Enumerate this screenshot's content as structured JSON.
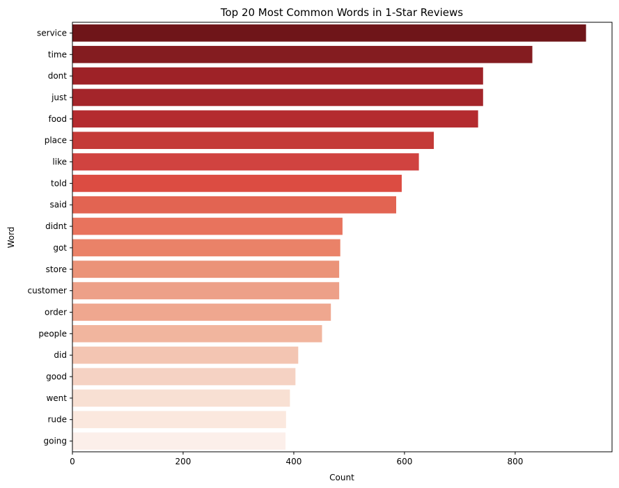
{
  "chart_data": {
    "type": "bar",
    "orientation": "horizontal",
    "title": "Top 20 Most Common Words in 1-Star Reviews",
    "xlabel": "Count",
    "ylabel": "Word",
    "xlim": [
      0,
      975
    ],
    "xticks": [
      0,
      200,
      400,
      600,
      800
    ],
    "grid": false,
    "categories": [
      "service",
      "time",
      "dont",
      "just",
      "food",
      "place",
      "like",
      "told",
      "said",
      "didnt",
      "got",
      "store",
      "customer",
      "order",
      "people",
      "did",
      "good",
      "went",
      "rude",
      "going"
    ],
    "values": [
      928,
      831,
      742,
      742,
      733,
      653,
      626,
      595,
      585,
      488,
      484,
      482,
      482,
      467,
      451,
      408,
      403,
      393,
      386,
      385
    ],
    "colors": [
      "#6f1519",
      "#841c20",
      "#9e2227",
      "#a4252a",
      "#b42b2f",
      "#c43a37",
      "#d04340",
      "#dc4c42",
      "#e26452",
      "#e8735d",
      "#ea8268",
      "#eb9378",
      "#eda088",
      "#efa78f",
      "#f1b59e",
      "#f3c5b2",
      "#f5d2c3",
      "#f8e0d3",
      "#fbe8de",
      "#fcefea"
    ]
  }
}
